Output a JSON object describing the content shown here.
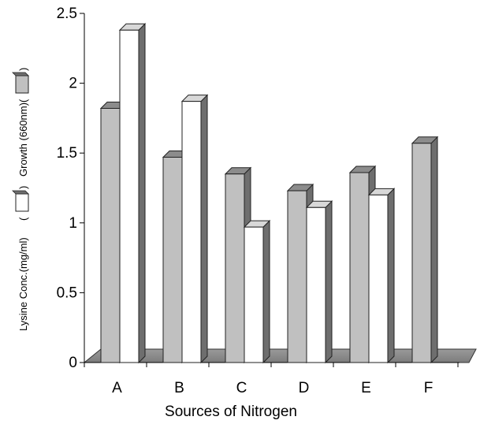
{
  "chart_data": {
    "type": "bar",
    "categories": [
      "A",
      "B",
      "C",
      "D",
      "E",
      "F"
    ],
    "series": [
      {
        "name": "Growth (660nm)",
        "values": [
          1.82,
          1.47,
          1.35,
          1.23,
          1.36,
          1.57
        ],
        "color": "#c0c0c0"
      },
      {
        "name": "Lysine Conc.(mg/ml)",
        "values": [
          2.38,
          1.87,
          0.97,
          1.11,
          1.2,
          null
        ],
        "color": "#ffffff"
      }
    ],
    "xlabel": "Sources of Nitrogen",
    "ylabel_growth": "Growth (660nm)(",
    "ylabel_growth_close": ")",
    "ylabel_lysine": "Lysine Conc.(mg/ml)",
    "ylabel_lysine_open": "(",
    "ylabel_lysine_close": ")",
    "ylim": [
      0,
      2.5
    ],
    "yticks": [
      0,
      0.5,
      1,
      1.5,
      2,
      2.5
    ],
    "ytick_labels": [
      "0",
      "0.5",
      "1",
      "1.5",
      "2",
      "2.5"
    ],
    "grid": false,
    "legend": "embedded in y-axis label"
  }
}
